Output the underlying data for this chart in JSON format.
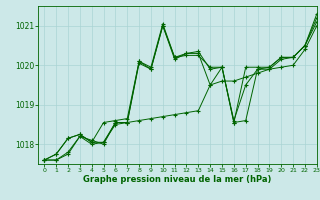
{
  "title": "Graphe pression niveau de la mer (hPa)",
  "bg_color": "#cce8e8",
  "line_color": "#006400",
  "grid_color": "#aad4d4",
  "xlim": [
    -0.5,
    23
  ],
  "ylim": [
    1017.5,
    1021.5
  ],
  "yticks": [
    1018,
    1019,
    1020,
    1021
  ],
  "xticks": [
    0,
    1,
    2,
    3,
    4,
    5,
    6,
    7,
    8,
    9,
    10,
    11,
    12,
    13,
    14,
    15,
    16,
    17,
    18,
    19,
    20,
    21,
    22,
    23
  ],
  "series": [
    [
      1017.6,
      1017.6,
      1017.75,
      1018.2,
      1018.0,
      1018.05,
      1018.5,
      1018.55,
      1020.05,
      1019.9,
      1021.0,
      1020.2,
      1020.25,
      1020.25,
      1019.95,
      1019.95,
      1018.55,
      1019.95,
      1019.95,
      1019.95,
      1020.2,
      1020.2,
      1020.5,
      1021.3
    ],
    [
      1017.6,
      1017.6,
      1017.8,
      1018.2,
      1018.1,
      1018.0,
      1018.55,
      1018.55,
      1020.1,
      1019.9,
      1021.0,
      1020.15,
      1020.3,
      1020.3,
      1019.5,
      1019.95,
      1018.55,
      1018.6,
      1019.9,
      1019.9,
      1020.15,
      1020.2,
      1020.5,
      1021.2
    ],
    [
      1017.6,
      1017.75,
      1018.15,
      1018.25,
      1018.05,
      1018.55,
      1018.6,
      1018.65,
      1020.1,
      1019.95,
      1021.05,
      1020.2,
      1020.3,
      1020.35,
      1019.9,
      1019.95,
      1018.6,
      1019.5,
      1019.9,
      1019.95,
      1020.2,
      1020.2,
      1020.5,
      1021.1
    ],
    [
      1017.6,
      1017.75,
      1018.15,
      1018.25,
      1018.05,
      1018.05,
      1018.55,
      1018.55,
      1018.6,
      1018.65,
      1018.7,
      1018.75,
      1018.8,
      1018.85,
      1019.5,
      1019.6,
      1019.6,
      1019.7,
      1019.8,
      1019.9,
      1019.95,
      1020.0,
      1020.4,
      1021.0
    ]
  ]
}
